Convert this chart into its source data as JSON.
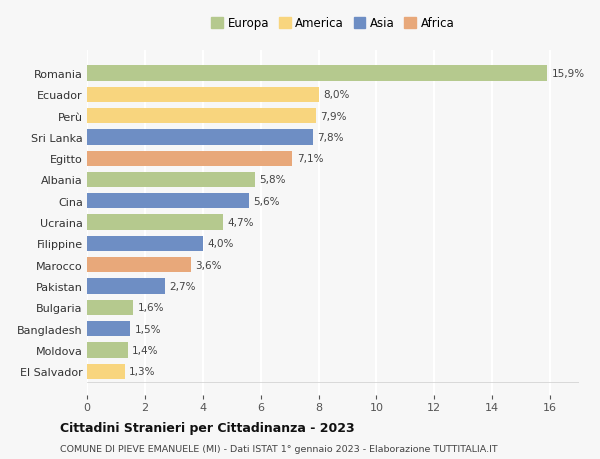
{
  "categories": [
    "Romania",
    "Ecuador",
    "Perù",
    "Sri Lanka",
    "Egitto",
    "Albania",
    "Cina",
    "Ucraina",
    "Filippine",
    "Marocco",
    "Pakistan",
    "Bulgaria",
    "Bangladesh",
    "Moldova",
    "El Salvador"
  ],
  "values": [
    15.9,
    8.0,
    7.9,
    7.8,
    7.1,
    5.8,
    5.6,
    4.7,
    4.0,
    3.6,
    2.7,
    1.6,
    1.5,
    1.4,
    1.3
  ],
  "labels": [
    "15,9%",
    "8,0%",
    "7,9%",
    "7,8%",
    "7,1%",
    "5,8%",
    "5,6%",
    "4,7%",
    "4,0%",
    "3,6%",
    "2,7%",
    "1,6%",
    "1,5%",
    "1,4%",
    "1,3%"
  ],
  "colors": [
    "#b5c98e",
    "#f8d57e",
    "#f8d57e",
    "#6e8ec4",
    "#e8a87a",
    "#b5c98e",
    "#6e8ec4",
    "#b5c98e",
    "#6e8ec4",
    "#e8a87a",
    "#6e8ec4",
    "#b5c98e",
    "#6e8ec4",
    "#b5c98e",
    "#f8d57e"
  ],
  "legend": {
    "Europa": "#b5c98e",
    "America": "#f8d57e",
    "Asia": "#6e8ec4",
    "Africa": "#e8a87a"
  },
  "title": "Cittadini Stranieri per Cittadinanza - 2023",
  "subtitle": "COMUNE DI PIEVE EMANUELE (MI) - Dati ISTAT 1° gennaio 2023 - Elaborazione TUTTITALIA.IT",
  "xlim": [
    0,
    17
  ],
  "xticks": [
    0,
    2,
    4,
    6,
    8,
    10,
    12,
    14,
    16
  ],
  "background_color": "#f7f7f7",
  "plot_bg_color": "#f7f7f7",
  "grid_color": "#ffffff",
  "bar_height": 0.72
}
